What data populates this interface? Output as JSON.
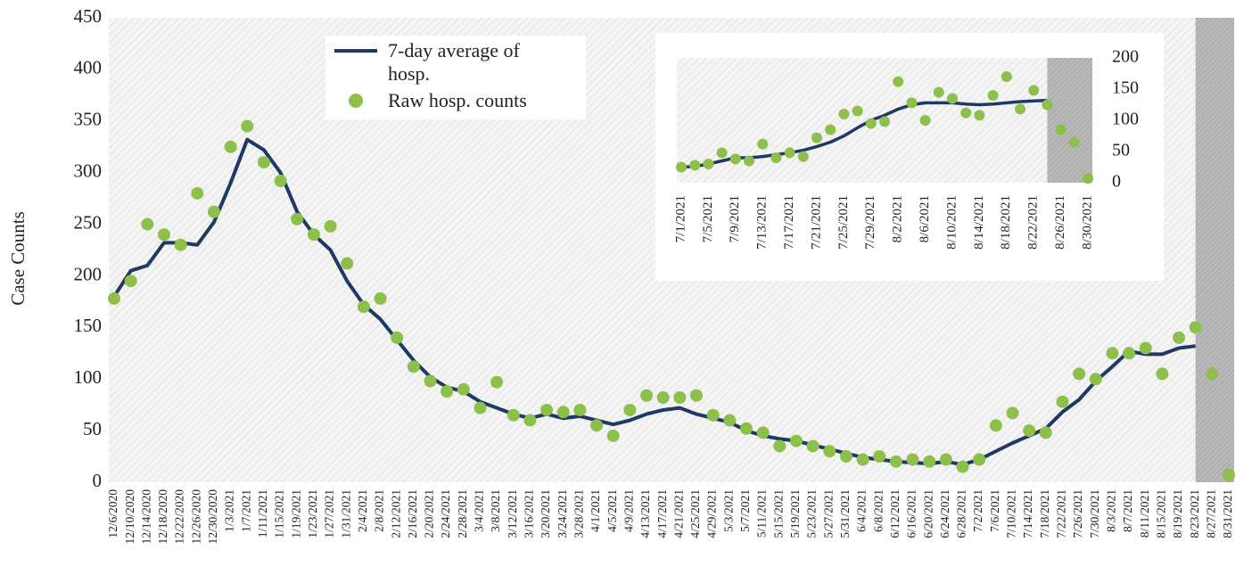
{
  "chart_data": [
    {
      "type": "line",
      "y_label": "Case Counts",
      "y_axis_side": "left",
      "categories": [
        "12/6/2020",
        "12/10/2020",
        "12/14/2020",
        "12/18/2020",
        "12/22/2020",
        "12/26/2020",
        "12/30/2020",
        "1/3/2021",
        "1/7/2021",
        "1/11/2021",
        "1/15/2021",
        "1/19/2021",
        "1/23/2021",
        "1/27/2021",
        "1/31/2021",
        "2/4/2021",
        "2/8/2021",
        "2/12/2021",
        "2/16/2021",
        "2/20/2021",
        "2/24/2021",
        "2/28/2021",
        "3/4/2021",
        "3/8/2021",
        "3/12/2021",
        "3/16/2021",
        "3/20/2021",
        "3/24/2021",
        "3/28/2021",
        "4/1/2021",
        "4/5/2021",
        "4/9/2021",
        "4/13/2021",
        "4/17/2021",
        "4/21/2021",
        "4/25/2021",
        "4/29/2021",
        "5/3/2021",
        "5/7/2021",
        "5/11/2021",
        "5/15/2021",
        "5/19/2021",
        "5/23/2021",
        "5/27/2021",
        "5/31/2021",
        "6/4/2021",
        "6/8/2021",
        "6/12/2021",
        "6/16/2021",
        "6/20/2021",
        "6/24/2021",
        "6/28/2021",
        "7/2/2021",
        "7/6/2021",
        "7/10/2021",
        "7/14/2021",
        "7/18/2021",
        "7/22/2021",
        "7/26/2021",
        "7/30/2021",
        "8/3/2021",
        "8/7/2021",
        "8/11/2021",
        "8/15/2021",
        "8/19/2021",
        "8/23/2021",
        "8/27/2021",
        "8/31/2021"
      ],
      "series": [
        {
          "name": "7-day average of hosp.",
          "type": "line",
          "color": "#1f3864",
          "values": [
            180,
            205,
            210,
            232,
            232,
            230,
            252,
            290,
            332,
            322,
            300,
            262,
            240,
            225,
            195,
            172,
            158,
            138,
            118,
            102,
            92,
            88,
            78,
            72,
            66,
            62,
            66,
            62,
            64,
            60,
            56,
            60,
            66,
            70,
            72,
            66,
            62,
            58,
            50,
            45,
            42,
            40,
            36,
            32,
            28,
            24,
            22,
            20,
            19,
            18,
            20,
            17,
            22,
            30,
            38,
            45,
            52,
            68,
            80,
            98,
            112,
            127,
            124,
            124,
            130,
            132,
            null,
            null
          ]
        },
        {
          "name": "Raw hosp. counts",
          "type": "scatter",
          "color": "#8dc04a",
          "values": [
            178,
            195,
            250,
            240,
            230,
            280,
            262,
            325,
            345,
            310,
            292,
            255,
            240,
            248,
            212,
            170,
            178,
            140,
            112,
            98,
            88,
            90,
            72,
            97,
            65,
            60,
            70,
            68,
            70,
            55,
            45,
            70,
            84,
            82,
            82,
            84,
            65,
            60,
            52,
            48,
            35,
            40,
            35,
            30,
            25,
            22,
            25,
            20,
            22,
            20,
            22,
            15,
            22,
            55,
            67,
            50,
            48,
            78,
            105,
            100,
            125,
            125,
            130,
            105,
            140,
            150,
            105,
            7
          ]
        }
      ],
      "ylim": [
        0,
        450
      ],
      "yticks": [
        0,
        50,
        100,
        150,
        200,
        250,
        300,
        350,
        400,
        450
      ],
      "grid": false
    },
    {
      "type": "line",
      "y_axis_side": "right",
      "categories": [
        "7/1/2021",
        null,
        "7/5/2021",
        null,
        "7/9/2021",
        null,
        "7/13/2021",
        null,
        "7/17/2021",
        null,
        "7/21/2021",
        null,
        "7/25/2021",
        null,
        "7/29/2021",
        null,
        "8/2/2021",
        null,
        "8/6/2021",
        null,
        "8/10/2021",
        null,
        "8/14/2021",
        null,
        "8/18/2021",
        null,
        "8/22/2021",
        null,
        "8/26/2021",
        null,
        "8/30/2021"
      ],
      "series": [
        {
          "type": "line",
          "color": "#1f3864",
          "values": [
            25,
            26,
            30,
            35,
            40,
            40,
            42,
            45,
            48,
            52,
            58,
            65,
            75,
            88,
            100,
            108,
            118,
            125,
            128,
            128,
            128,
            126,
            125,
            126,
            128,
            130,
            131,
            132,
            null,
            null,
            null
          ]
        },
        {
          "type": "scatter",
          "color": "#8dc04a",
          "values": [
            25,
            28,
            30,
            48,
            38,
            35,
            62,
            40,
            48,
            42,
            72,
            85,
            110,
            115,
            95,
            98,
            162,
            128,
            100,
            145,
            135,
            112,
            108,
            140,
            170,
            118,
            148,
            125,
            85,
            65,
            7
          ]
        }
      ],
      "ylim": [
        0,
        200
      ],
      "yticks": [
        0,
        50,
        100,
        150,
        200
      ],
      "grid": false
    }
  ]
}
